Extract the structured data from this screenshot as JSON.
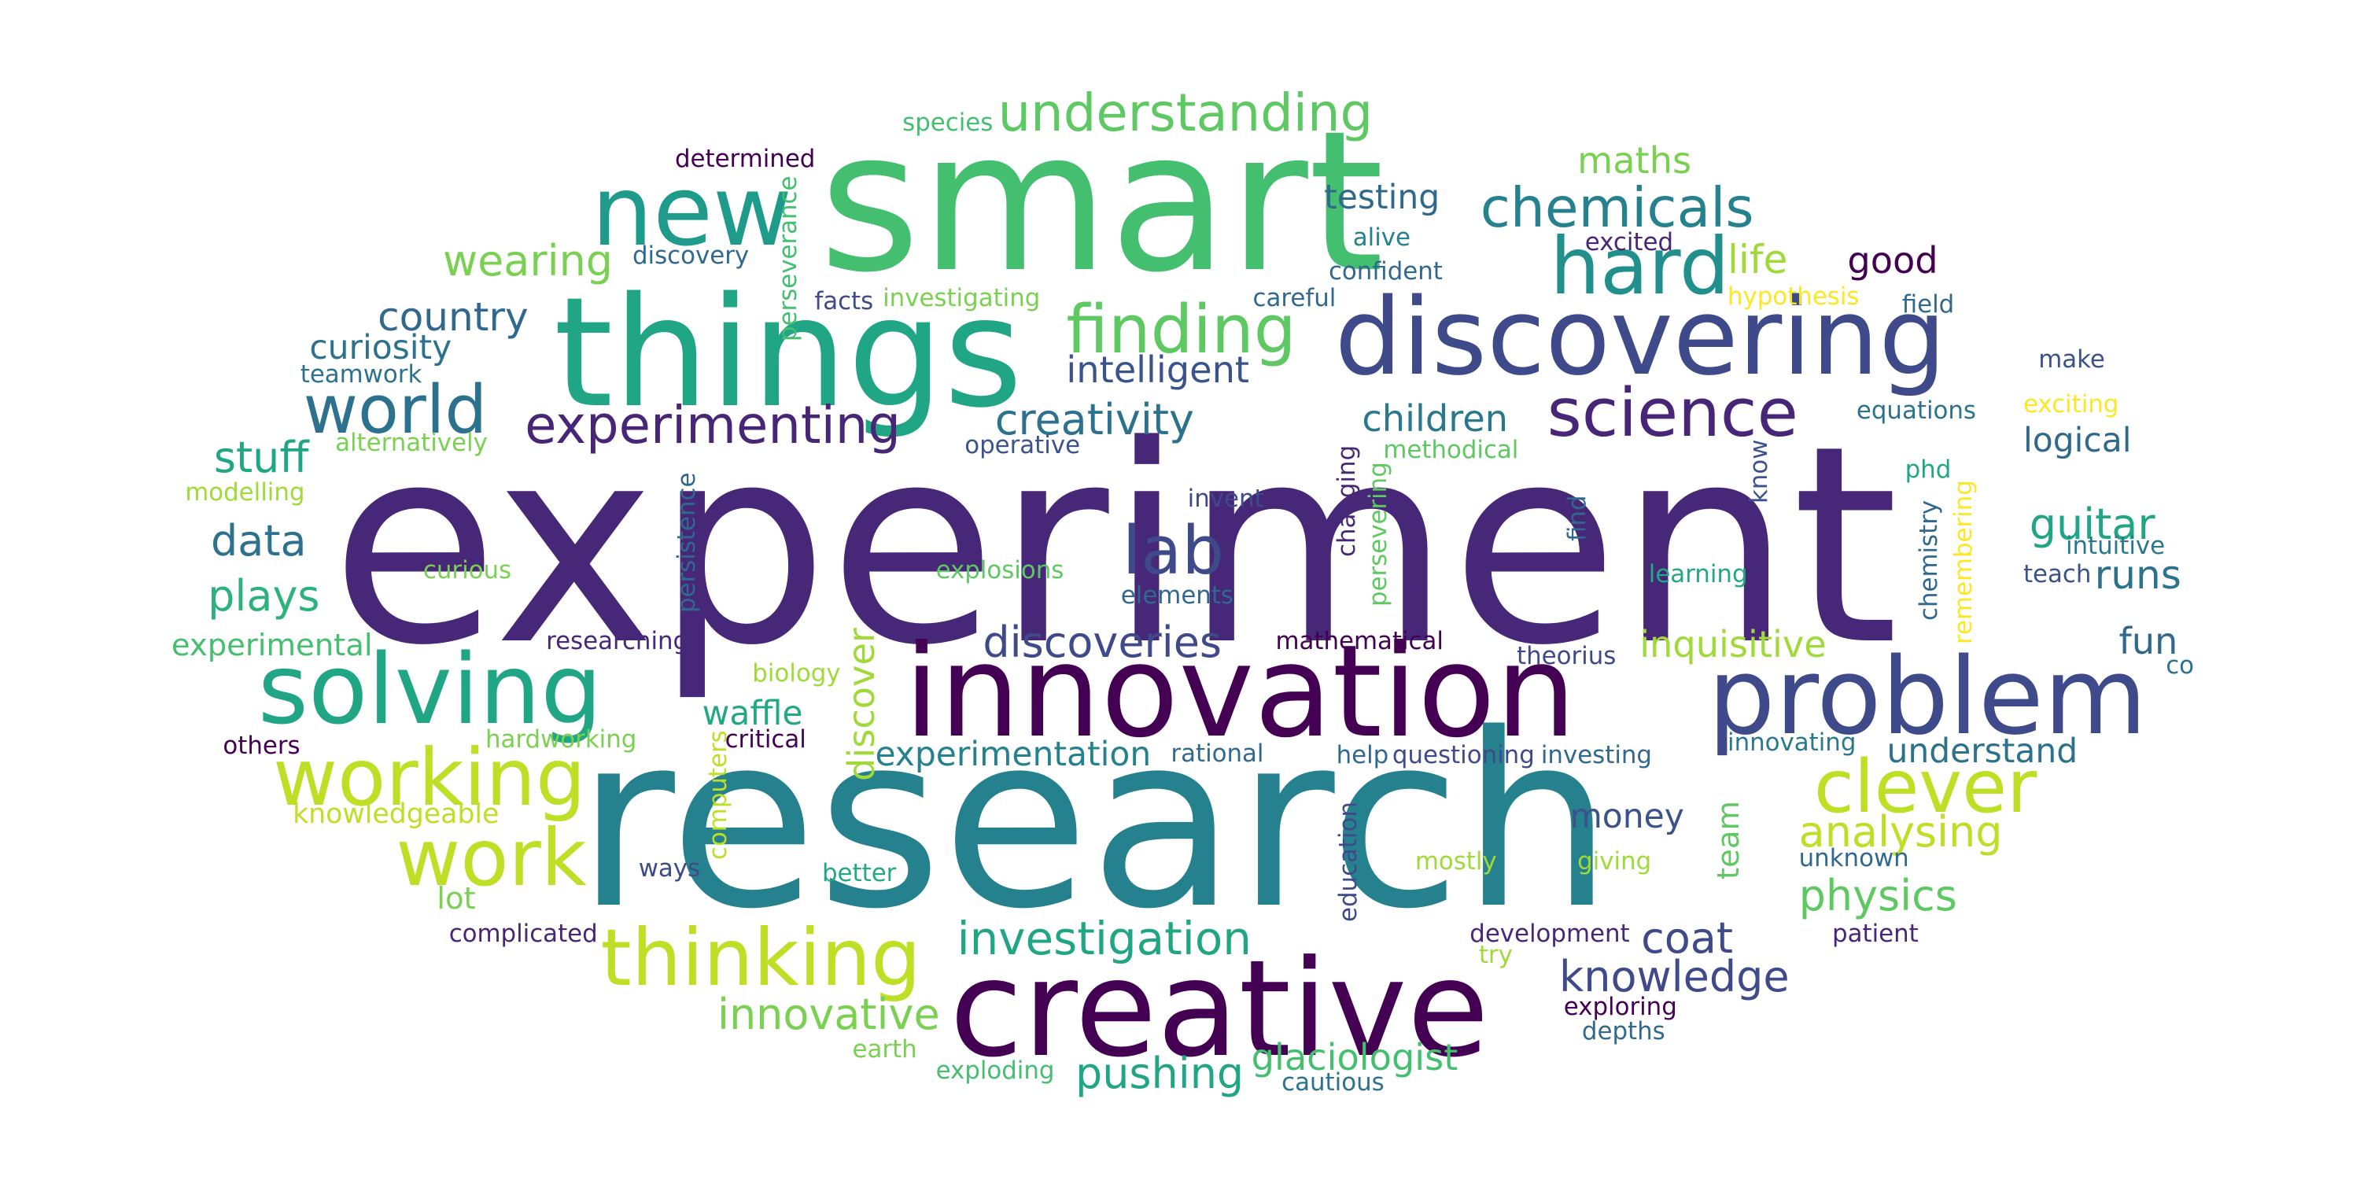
{
  "words": [
    {
      "text": "experiment",
      "color": "#472777"
    },
    {
      "text": "research",
      "color": "#26818e"
    },
    {
      "text": "smart",
      "color": "#44bf70"
    },
    {
      "text": "things",
      "color": "#21a685"
    },
    {
      "text": "innovation",
      "color": "#440154"
    },
    {
      "text": "discovering",
      "color": "#3e4a89"
    },
    {
      "text": "problem",
      "color": "#3e4a89"
    },
    {
      "text": "creative",
      "color": "#440154"
    },
    {
      "text": "solving",
      "color": "#21a685"
    },
    {
      "text": "new",
      "color": "#1e9b8a"
    },
    {
      "text": "hard",
      "color": "#21908d"
    },
    {
      "text": "science",
      "color": "#482677"
    },
    {
      "text": "thinking",
      "color": "#bddf26"
    },
    {
      "text": "working",
      "color": "#bddf26"
    },
    {
      "text": "clever",
      "color": "#bddf26"
    },
    {
      "text": "work",
      "color": "#bddf26"
    },
    {
      "text": "world",
      "color": "#2c728e"
    },
    {
      "text": "finding",
      "color": "#5ec962"
    },
    {
      "text": "lab",
      "color": "#3e4a89"
    },
    {
      "text": "chemicals",
      "color": "#26818e"
    },
    {
      "text": "experimenting",
      "color": "#482677"
    },
    {
      "text": "understanding",
      "color": "#5ec962"
    },
    {
      "text": "investigation",
      "color": "#21a685"
    },
    {
      "text": "knowledge",
      "color": "#3e4a89"
    },
    {
      "text": "discoveries",
      "color": "#3e4a89"
    },
    {
      "text": "creativity",
      "color": "#2c728e"
    },
    {
      "text": "innovative",
      "color": "#7ad151"
    },
    {
      "text": "pushing",
      "color": "#21a685"
    },
    {
      "text": "glaciologist",
      "color": "#44bf70"
    },
    {
      "text": "analysing",
      "color": "#bddf26"
    },
    {
      "text": "physics",
      "color": "#5ec962"
    },
    {
      "text": "inquisitive",
      "color": "#a0da39"
    },
    {
      "text": "discover",
      "color": "#a0da39"
    },
    {
      "text": "intelligent",
      "color": "#3b528b"
    },
    {
      "text": "experimentation",
      "color": "#26818e"
    },
    {
      "text": "country",
      "color": "#31688e"
    },
    {
      "text": "stuff",
      "color": "#21a685"
    },
    {
      "text": "wearing",
      "color": "#7ad151"
    },
    {
      "text": "maths",
      "color": "#7ad151"
    },
    {
      "text": "life",
      "color": "#a0da39"
    },
    {
      "text": "good",
      "color": "#440154"
    },
    {
      "text": "testing",
      "color": "#31688e"
    },
    {
      "text": "children",
      "color": "#2a788e"
    },
    {
      "text": "guitar",
      "color": "#21a685"
    },
    {
      "text": "runs",
      "color": "#2c728e"
    },
    {
      "text": "plays",
      "color": "#2db27d"
    },
    {
      "text": "data",
      "color": "#2c728e"
    },
    {
      "text": "coat",
      "color": "#3e4a89"
    },
    {
      "text": "fun",
      "color": "#31688e"
    },
    {
      "text": "waffle",
      "color": "#22a884"
    },
    {
      "text": "money",
      "color": "#3b528b"
    },
    {
      "text": "understand",
      "color": "#2c728e"
    },
    {
      "text": "curiosity",
      "color": "#2c728e"
    },
    {
      "text": "logical",
      "color": "#31688e"
    },
    {
      "text": "experimental",
      "color": "#44bf70"
    },
    {
      "text": "knowledgeable",
      "color": "#bddf26"
    },
    {
      "text": "lot",
      "color": "#7ad151"
    },
    {
      "text": "team",
      "color": "#5ec962"
    },
    {
      "text": "species",
      "color": "#44bf70"
    },
    {
      "text": "determined",
      "color": "#440154"
    },
    {
      "text": "discovery",
      "color": "#31688e"
    },
    {
      "text": "perseverance",
      "color": "#44bf70"
    },
    {
      "text": "alive",
      "color": "#26818e"
    },
    {
      "text": "excited",
      "color": "#482677"
    },
    {
      "text": "confident",
      "color": "#31688e"
    },
    {
      "text": "facts",
      "color": "#3e4a89"
    },
    {
      "text": "investigating",
      "color": "#7ad151"
    },
    {
      "text": "careful",
      "color": "#31688e"
    },
    {
      "text": "hypothesis",
      "color": "#fde725"
    },
    {
      "text": "field",
      "color": "#31688e"
    },
    {
      "text": "teamwork",
      "color": "#2c728e"
    },
    {
      "text": "make",
      "color": "#3b528b"
    },
    {
      "text": "equations",
      "color": "#2c728e"
    },
    {
      "text": "exciting",
      "color": "#fde725"
    },
    {
      "text": "alternatively",
      "color": "#7ad151"
    },
    {
      "text": "operative",
      "color": "#3b528b"
    },
    {
      "text": "methodical",
      "color": "#5ec962"
    },
    {
      "text": "phd",
      "color": "#21a685"
    },
    {
      "text": "modelling",
      "color": "#a0da39"
    },
    {
      "text": "invent",
      "color": "#3e4a89"
    },
    {
      "text": "changing",
      "color": "#472777"
    },
    {
      "text": "persevering",
      "color": "#5ec962"
    },
    {
      "text": "find",
      "color": "#31688e"
    },
    {
      "text": "know",
      "color": "#3b528b"
    },
    {
      "text": "persistence",
      "color": "#31688e"
    },
    {
      "text": "intuitive",
      "color": "#2a788e"
    },
    {
      "text": "chemistry",
      "color": "#31688e"
    },
    {
      "text": "remembering",
      "color": "#fde725"
    },
    {
      "text": "curious",
      "color": "#7ad151"
    },
    {
      "text": "explosions",
      "color": "#5ec962"
    },
    {
      "text": "elements",
      "color": "#31688e"
    },
    {
      "text": "learning",
      "color": "#22a884"
    },
    {
      "text": "teach",
      "color": "#3b528b"
    },
    {
      "text": "researching",
      "color": "#472777"
    },
    {
      "text": "mathematical",
      "color": "#440154"
    },
    {
      "text": "theorius",
      "color": "#3e4a89"
    },
    {
      "text": "co",
      "color": "#2c728e"
    },
    {
      "text": "biology",
      "color": "#a0da39"
    },
    {
      "text": "others",
      "color": "#440154"
    },
    {
      "text": "hardworking",
      "color": "#7ad151"
    },
    {
      "text": "critical",
      "color": "#440154"
    },
    {
      "text": "rational",
      "color": "#31688e"
    },
    {
      "text": "help",
      "color": "#31688e"
    },
    {
      "text": "questioning",
      "color": "#3e4a89"
    },
    {
      "text": "investing",
      "color": "#31688e"
    },
    {
      "text": "innovating",
      "color": "#2a788e"
    },
    {
      "text": "computers",
      "color": "#bddf26"
    },
    {
      "text": "education",
      "color": "#3e4a89"
    },
    {
      "text": "ways",
      "color": "#3e4a89"
    },
    {
      "text": "better",
      "color": "#22a884"
    },
    {
      "text": "mostly",
      "color": "#a0da39"
    },
    {
      "text": "giving",
      "color": "#a0da39"
    },
    {
      "text": "unknown",
      "color": "#31688e"
    },
    {
      "text": "complicated",
      "color": "#482677"
    },
    {
      "text": "development",
      "color": "#482677"
    },
    {
      "text": "try",
      "color": "#a0da39"
    },
    {
      "text": "patient",
      "color": "#482677"
    },
    {
      "text": "exploring",
      "color": "#440154"
    },
    {
      "text": "depths",
      "color": "#31688e"
    },
    {
      "text": "earth",
      "color": "#7ad151"
    },
    {
      "text": "exploding",
      "color": "#44bf70"
    },
    {
      "text": "cautious",
      "color": "#2c728e"
    }
  ]
}
